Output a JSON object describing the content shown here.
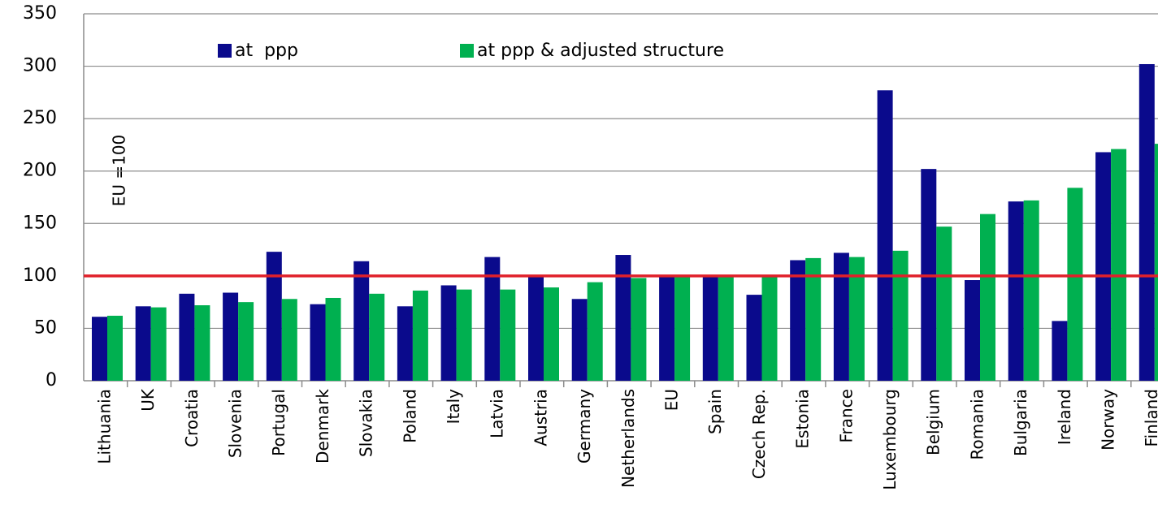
{
  "chart_data": {
    "type": "bar",
    "categories": [
      "Lithuania",
      "UK",
      "Croatia",
      "Slovenia",
      "Portugal",
      "Denmark",
      "Slovakia",
      "Poland",
      "Italy",
      "Latvia",
      "Austria",
      "Germany",
      "Netherlands",
      "EU",
      "Spain",
      "Czech Rep.",
      "Estonia",
      "France",
      "Luxembourg",
      "Belgium",
      "Romania",
      "Bulgaria",
      "Ireland",
      "Norway",
      "Finland"
    ],
    "series": [
      {
        "name": "at  ppp",
        "color": "#0a0a8c",
        "values": [
          61,
          71,
          83,
          84,
          123,
          73,
          114,
          71,
          91,
          118,
          100,
          78,
          120,
          100,
          100,
          82,
          115,
          122,
          277,
          202,
          96,
          171,
          57,
          218,
          302
        ]
      },
      {
        "name": "at ppp & adjusted structure",
        "color": "#00b050",
        "values": [
          62,
          70,
          72,
          75,
          78,
          79,
          83,
          86,
          87,
          87,
          89,
          94,
          98,
          100,
          100,
          100,
          117,
          118,
          124,
          147,
          159,
          172,
          184,
          221,
          226
        ]
      }
    ],
    "ylim": [
      0,
      350
    ],
    "yticks": [
      0,
      50,
      100,
      150,
      200,
      250,
      300,
      350
    ],
    "grid": true,
    "reference_line": {
      "value": 100,
      "color": "#e0202a"
    },
    "annotation": "EU =100"
  }
}
